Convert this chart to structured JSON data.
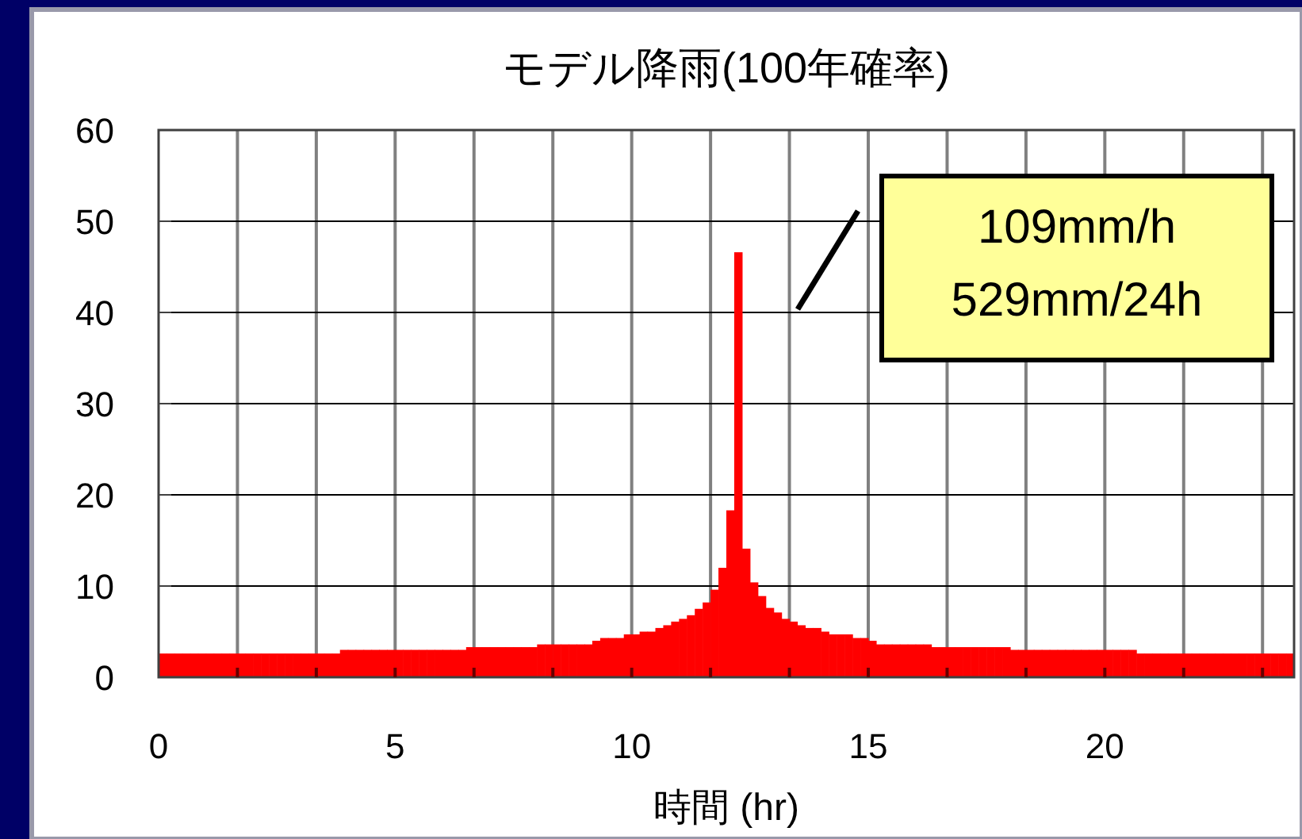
{
  "chart_data": {
    "type": "histogram",
    "title": "モデル降雨(100年確率)",
    "xlabel": "時間 (hr)",
    "color": "#ff0000",
    "bins": [
      0,
      0.1667,
      0.3333,
      0.5,
      0.6667,
      0.8333,
      1,
      1.1667,
      1.3333,
      1.5,
      1.6667,
      1.8333,
      2,
      2.1667,
      2.3333,
      2.5,
      2.6667,
      2.8333,
      3,
      3.1667,
      3.3333,
      3.5,
      3.6667,
      3.8333,
      4,
      4.1667,
      4.3333,
      4.5,
      4.6667,
      4.8333,
      5,
      5.1667,
      5.3333,
      5.5,
      5.6667,
      5.8333,
      6,
      6.1667,
      6.3333,
      6.5,
      6.6667,
      6.8333,
      7,
      7.1667,
      7.3333,
      7.5,
      7.6667,
      7.8333,
      8,
      8.1667,
      8.3333,
      8.5,
      8.6667,
      8.8333,
      9,
      9.1667,
      9.3333,
      9.5,
      9.6667,
      9.8333,
      10,
      10.1667,
      10.3333,
      10.5,
      10.6667,
      10.8333,
      11,
      11.1667,
      11.3333,
      11.5,
      11.6667,
      11.8333,
      12,
      12.1667,
      12.3333,
      12.5,
      12.6667,
      12.8333,
      13,
      13.1667,
      13.3333,
      13.5,
      13.6667,
      13.8333,
      14,
      14.1667,
      14.3333,
      14.5,
      14.6667,
      14.8333,
      15,
      15.1667,
      15.3333,
      15.5,
      15.6667,
      15.8333,
      16,
      16.1667,
      16.3333,
      16.5,
      16.6667,
      16.8333,
      17,
      17.1667,
      17.3333,
      17.5,
      17.6667,
      17.8333,
      18,
      18.1667,
      18.3333,
      18.5,
      18.6667,
      18.8333,
      19,
      19.1667,
      19.3333,
      19.5,
      19.6667,
      19.8333,
      20,
      20.1667,
      20.3333,
      20.5,
      20.6667,
      20.8333,
      21,
      21.1667,
      21.3333,
      21.5,
      21.6667,
      21.8333,
      22,
      22.1667,
      22.3333,
      22.5,
      22.6667,
      22.8333,
      23,
      23.1667,
      23.3333,
      23.5,
      23.6667,
      23.8333,
      24
    ],
    "values": [
      2.6,
      2.6,
      2.6,
      2.6,
      2.6,
      2.6,
      2.6,
      2.6,
      2.6,
      2.6,
      2.6,
      2.6,
      2.6,
      2.6,
      2.6,
      2.6,
      2.6,
      2.6,
      2.6,
      2.6,
      2.6,
      2.6,
      2.6,
      3.0,
      3.0,
      3.0,
      3.0,
      3.0,
      3.0,
      3.0,
      3.0,
      3.0,
      3.0,
      3.0,
      3.0,
      3.0,
      3.0,
      3.0,
      3.0,
      3.3,
      3.3,
      3.3,
      3.3,
      3.3,
      3.3,
      3.3,
      3.3,
      3.3,
      3.6,
      3.6,
      3.6,
      3.6,
      3.6,
      3.6,
      3.6,
      4.0,
      4.3,
      4.3,
      4.3,
      4.7,
      4.7,
      5.0,
      5.0,
      5.4,
      5.7,
      6.1,
      6.4,
      6.8,
      7.5,
      8.2,
      9.6,
      12.0,
      18.3,
      46.6,
      14.1,
      10.4,
      8.9,
      7.6,
      7.1,
      6.4,
      6.1,
      5.7,
      5.4,
      5.4,
      5.0,
      4.7,
      4.7,
      4.7,
      4.3,
      4.3,
      4.0,
      3.6,
      3.6,
      3.6,
      3.6,
      3.6,
      3.6,
      3.6,
      3.3,
      3.3,
      3.3,
      3.3,
      3.3,
      3.3,
      3.3,
      3.3,
      3.3,
      3.3,
      3.0,
      3.0,
      3.0,
      3.0,
      3.0,
      3.0,
      3.0,
      3.0,
      3.0,
      3.0,
      3.0,
      3.0,
      3.0,
      3.0,
      3.0,
      3.0,
      2.6,
      2.6,
      2.6,
      2.6,
      2.6,
      2.6,
      2.6,
      2.6,
      2.6,
      2.6,
      2.6,
      2.6,
      2.6,
      2.6,
      2.6,
      2.6,
      2.6,
      2.6,
      2.6,
      2.6
    ],
    "xlim": [
      0,
      24
    ],
    "ylim": [
      0,
      60
    ],
    "xticks": [
      0,
      {
        "value": 1.6667,
        "label": null
      },
      {
        "value": 3.3333,
        "label": null
      },
      5,
      {
        "value": 5,
        "label": null
      },
      {
        "value": 6.6667,
        "label": null
      },
      {
        "value": 8.3333,
        "label": null
      },
      10,
      {
        "value": 10,
        "label": null
      },
      {
        "value": 11.6667,
        "label": null
      },
      {
        "value": 13.3333,
        "label": null
      },
      15,
      {
        "value": 15,
        "label": null
      },
      {
        "value": 16.6667,
        "label": null
      },
      {
        "value": 18.3333,
        "label": null
      },
      20,
      {
        "value": 20,
        "label": null
      },
      {
        "value": 21.6667,
        "label": null
      },
      {
        "value": 23.3333,
        "label": null
      }
    ],
    "yticks": [
      0,
      10,
      20,
      30,
      40,
      50,
      60
    ],
    "grid": true,
    "annotations": [
      "109mm/h\n529mm/24h"
    ]
  }
}
